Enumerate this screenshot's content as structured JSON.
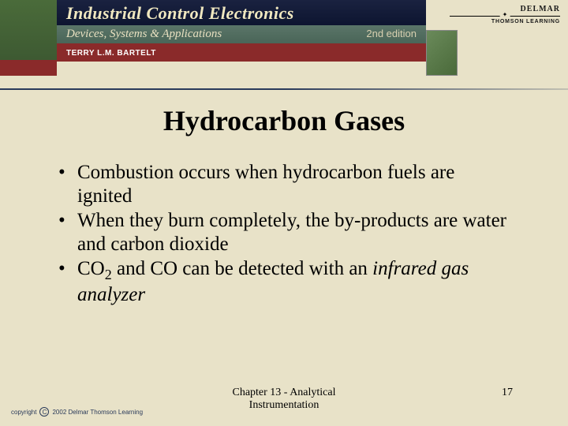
{
  "header": {
    "title": "Industrial Control Electronics",
    "subtitle": "Devices, Systems & Applications",
    "edition": "2nd edition",
    "author": "TERRY L.M. BARTELT",
    "publisher_top": "DELMAR",
    "publisher_bottom": "THOMSON LEARNING"
  },
  "slide": {
    "title": "Hydrocarbon Gases",
    "bullets": [
      {
        "text": "Combustion occurs when hydrocarbon fuels are ignited"
      },
      {
        "text": "When they burn completely, the by-products are water and carbon dioxide"
      },
      {
        "html": "CO<sub>2</sub> and CO can be detected with an <i>infrared gas analyzer</i>"
      }
    ]
  },
  "footer": {
    "chapter_line1": "Chapter 13 - Analytical",
    "chapter_line2": "Instrumentation",
    "page_number": "17",
    "copyright_text": "2002 Delmar Thomson Learning",
    "copyright_prefix": "copyright"
  },
  "colors": {
    "background": "#e8e2c8",
    "navy": "#1a2240",
    "sage": "#5a7568",
    "maroon": "#8a2a2a",
    "text": "#000000"
  },
  "typography": {
    "title_fontsize": 36,
    "bullet_fontsize": 25,
    "footer_fontsize": 14
  }
}
